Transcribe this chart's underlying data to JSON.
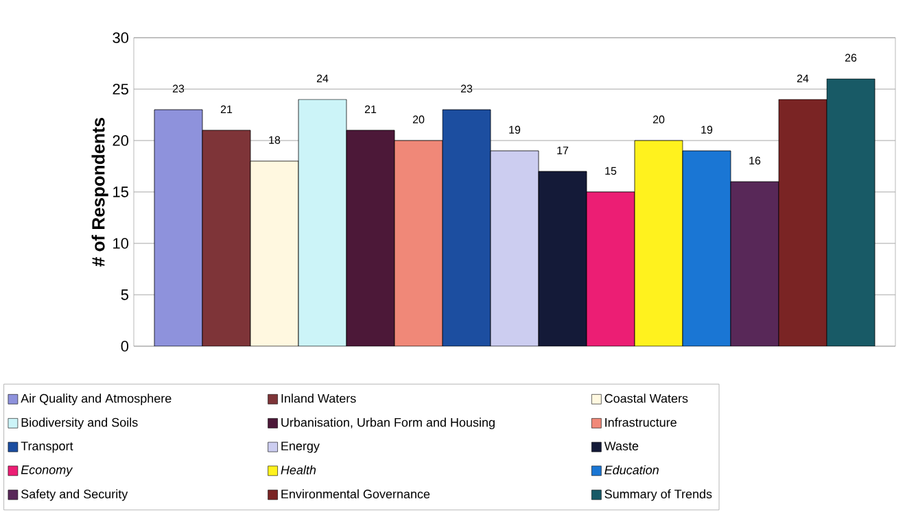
{
  "chart_data": {
    "type": "bar",
    "ylabel": "# of Respondents",
    "categories": [
      null
    ],
    "series": [
      {
        "name": "Air Quality and Atmosphere",
        "color": "#8e92dc",
        "values": [
          23
        ]
      },
      {
        "name": "Inland Waters",
        "color": "#7e3438",
        "values": [
          21
        ]
      },
      {
        "name": "Coastal Waters",
        "color": "#fff8e0",
        "values": [
          18
        ]
      },
      {
        "name": "Biodiversity and Soils",
        "color": "#ccf4f8",
        "values": [
          24
        ]
      },
      {
        "name": "Urbanisation, Urban Form and Housing",
        "color": "#4c1838",
        "values": [
          21
        ]
      },
      {
        "name": "Infrastructure",
        "color": "#f08878",
        "values": [
          20
        ]
      },
      {
        "name": "Transport",
        "color": "#1c4ea0",
        "values": [
          23
        ]
      },
      {
        "name": "Energy",
        "color": "#cccdf0",
        "values": [
          19
        ]
      },
      {
        "name": "Waste",
        "color": "#141a38",
        "values": [
          17
        ]
      },
      {
        "name": "*Economy*",
        "color": "#ec1e74",
        "values": [
          15
        ]
      },
      {
        "name": "*Health*",
        "color": "#fff21e",
        "values": [
          20
        ]
      },
      {
        "name": "*Education*",
        "color": "#1a76d4",
        "values": [
          19
        ]
      },
      {
        "name": "Safety and Security",
        "color": "#582858",
        "values": [
          16
        ]
      },
      {
        "name": "Environmental Governance",
        "color": "#7a2424",
        "values": [
          24
        ]
      },
      {
        "name": "Summary of Trends",
        "color": "#185a66",
        "values": [
          26
        ]
      }
    ],
    "ylim": [
      0,
      30
    ],
    "yticks": [
      0,
      5,
      10,
      15,
      20,
      25,
      30
    ],
    "grid": "y",
    "legend": "bottom",
    "data_labels": true
  }
}
